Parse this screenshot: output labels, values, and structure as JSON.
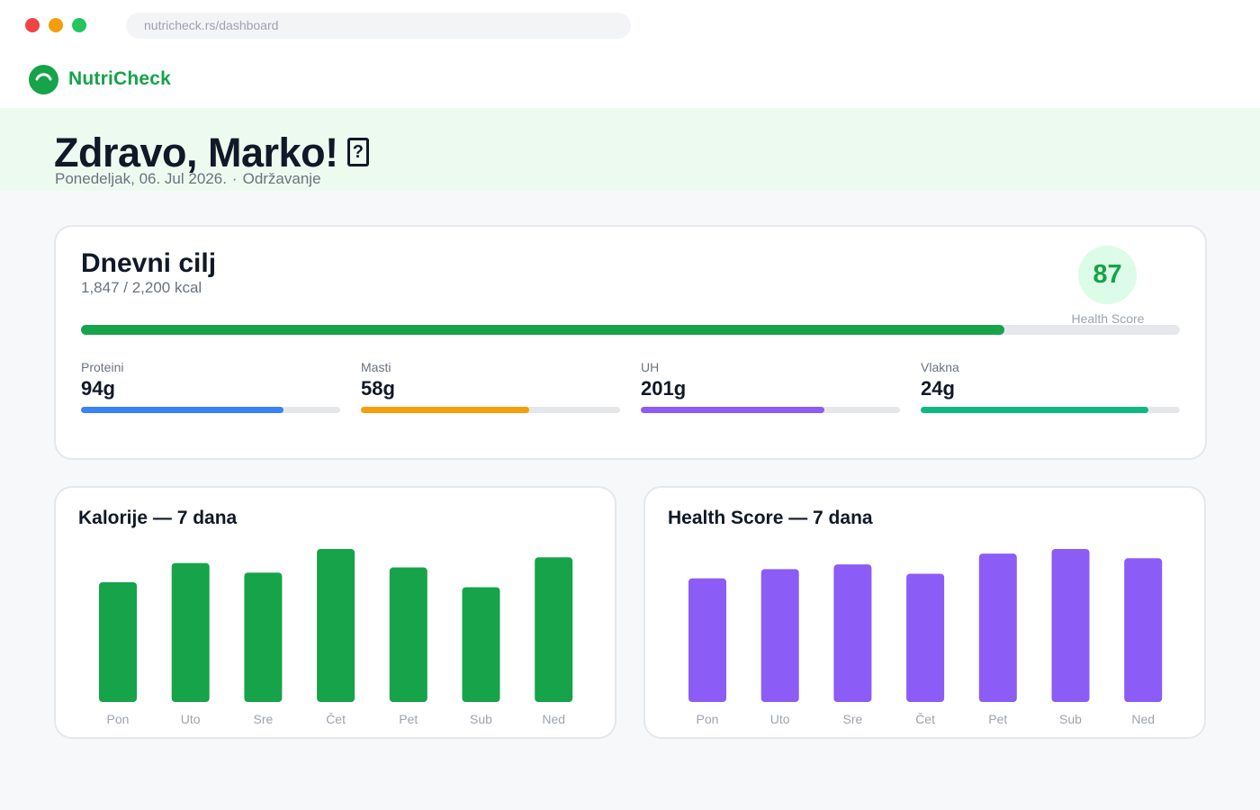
{
  "browser": {
    "url": "nutricheck.rs/dashboard"
  },
  "brand": {
    "name": "NutriCheck"
  },
  "hero": {
    "greeting": "Zdravo, Marko!",
    "emoji": "?",
    "date": "Ponedeljak, 06. Jul 2026.",
    "separator": "·",
    "mode": "Održavanje"
  },
  "goal": {
    "title": "Dnevni cilj",
    "consumed": "1,847 / 2,200 kcal",
    "progress": 0.84,
    "health_score": "87",
    "health_score_label": "Health Score",
    "macros": [
      {
        "label": "Proteini",
        "value": "94g",
        "progress": 0.78,
        "color": "#3b82f6"
      },
      {
        "label": "Masti",
        "value": "58g",
        "progress": 0.65,
        "color": "#f59e0b"
      },
      {
        "label": "UH",
        "value": "201g",
        "progress": 0.71,
        "color": "#8b5cf6"
      },
      {
        "label": "Vlakna",
        "value": "24g",
        "progress": 0.88,
        "color": "#10b981"
      }
    ]
  },
  "chart_data": [
    {
      "type": "bar",
      "title": "Kalorije — 7 dana",
      "categories": [
        "Pon",
        "Uto",
        "Sre",
        "Čet",
        "Pet",
        "Sub",
        "Ned"
      ],
      "values": [
        1880,
        2180,
        2030,
        2400,
        2110,
        1800,
        2270
      ],
      "ylim": [
        0,
        2400
      ],
      "color": "#16a34a"
    },
    {
      "type": "bar",
      "title": "Health Score — 7 dana",
      "categories": [
        "Pon",
        "Uto",
        "Sre",
        "Čet",
        "Pet",
        "Sub",
        "Ned"
      ],
      "values": [
        80,
        86,
        89,
        83,
        96,
        99,
        93
      ],
      "ylim": [
        0,
        99
      ],
      "color": "#8b5cf6"
    }
  ]
}
